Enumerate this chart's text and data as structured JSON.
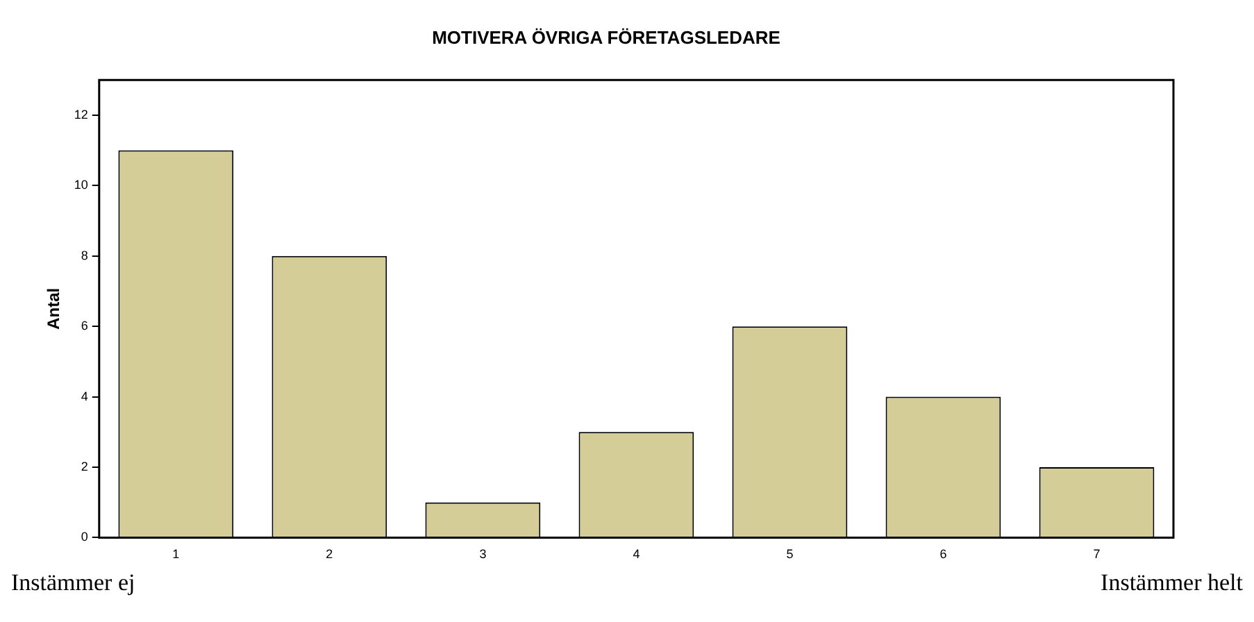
{
  "chart_data": {
    "type": "bar",
    "title": "MOTIVERA ÖVRIGA FÖRETAGSLEDARE",
    "ylabel": "Antal",
    "categories": [
      "1",
      "2",
      "3",
      "4",
      "5",
      "6",
      "7"
    ],
    "values": [
      11,
      8,
      1,
      3,
      6,
      4,
      2
    ],
    "color": "#d4cd98",
    "ylim": [
      0,
      13
    ],
    "yticks": [
      0,
      2,
      4,
      6,
      8,
      10,
      12
    ],
    "grid": false,
    "legend": false,
    "annotations": [
      "Instämmer ej",
      "Instämmer helt"
    ]
  }
}
